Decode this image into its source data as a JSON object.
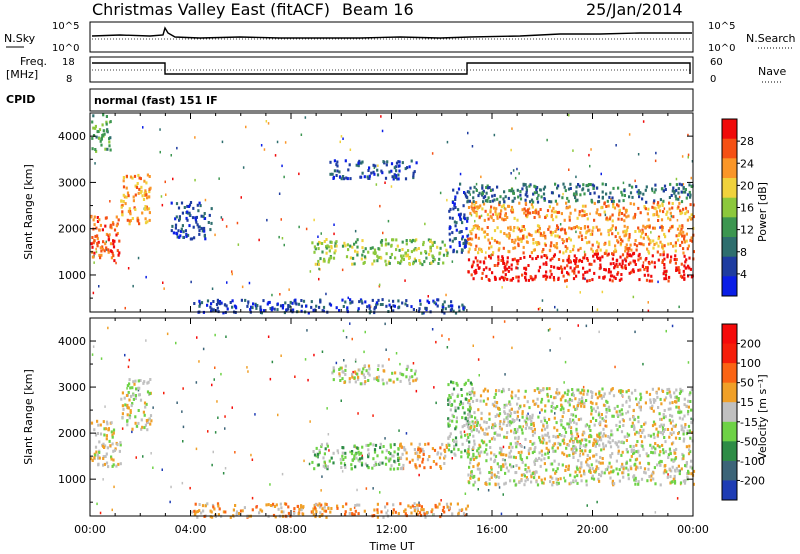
{
  "header": {
    "station": "Christmas Valley East (fitACF)",
    "beam": "Beam 16",
    "date": "25/Jan/2014"
  },
  "top_panels": {
    "nsky_label": "N.Sky",
    "nsky_ticks": [
      "10^5",
      "10^0"
    ],
    "nsearch_label": "N.Search",
    "nsearch_ticks": [
      "10^5",
      "10^0"
    ],
    "freq_label_1": "Freq.",
    "freq_label_2": "[MHz]",
    "freq_ticks": [
      "18",
      "8"
    ],
    "nave_label": "Nave",
    "nave_ticks": [
      "60",
      "0"
    ],
    "cpid_label": "CPID",
    "cpid_value": "normal (fast) 151 IF"
  },
  "chart_data": [
    {
      "type": "heatmap",
      "name": "Power",
      "ylabel": "Slant Range [km]",
      "ylim": [
        200,
        4500
      ],
      "yticks": [
        "1000",
        "2000",
        "3000",
        "4000"
      ],
      "x_hours": [
        0,
        24
      ],
      "colorbar_label": "Power [dB]",
      "colorbar_ticks": [
        "28",
        "24",
        "20",
        "16",
        "12",
        "8",
        "4"
      ],
      "colors": [
        "#0a1ee6",
        "#1e3ca0",
        "#2e6e6e",
        "#3c9650",
        "#8cc83c",
        "#f0d23c",
        "#fa9628",
        "#f55014",
        "#f00a0a"
      ],
      "regions": [
        {
          "t": [
            0.0,
            1.2
          ],
          "r": [
            1300,
            2300
          ],
          "level": 7
        },
        {
          "t": [
            0.0,
            0.8
          ],
          "r": [
            3700,
            4500
          ],
          "level": 3
        },
        {
          "t": [
            1.2,
            2.4
          ],
          "r": [
            2100,
            3200
          ],
          "level": 6
        },
        {
          "t": [
            3.2,
            4.8
          ],
          "r": [
            1800,
            2600
          ],
          "level": 1
        },
        {
          "t": [
            8.8,
            14.2
          ],
          "r": [
            1250,
            1800
          ],
          "level": 4
        },
        {
          "t": [
            9.5,
            13.0
          ],
          "r": [
            3100,
            3500
          ],
          "level": 1
        },
        {
          "t": [
            14.2,
            15.0
          ],
          "r": [
            1500,
            3000
          ],
          "level": 1
        },
        {
          "t": [
            15.0,
            24.0
          ],
          "r": [
            900,
            1500
          ],
          "level": 8
        },
        {
          "t": [
            15.0,
            24.0
          ],
          "r": [
            1500,
            2100
          ],
          "level": 6
        },
        {
          "t": [
            15.0,
            24.0
          ],
          "r": [
            2200,
            2600
          ],
          "level": 6
        },
        {
          "t": [
            15.0,
            24.0
          ],
          "r": [
            2600,
            3000
          ],
          "level": 2
        },
        {
          "t": [
            4.0,
            15.0
          ],
          "r": [
            200,
            500
          ],
          "level": 1
        }
      ]
    },
    {
      "type": "heatmap",
      "name": "Velocity",
      "ylabel": "Slant Range [km]",
      "xlabel": "Time UT",
      "ylim": [
        200,
        4500
      ],
      "yticks": [
        "1000",
        "2000",
        "3000",
        "4000"
      ],
      "xticks": [
        "00:00",
        "04:00",
        "08:00",
        "12:00",
        "16:00",
        "20:00",
        "00:00"
      ],
      "x_hours": [
        0,
        24
      ],
      "colorbar_label": "Velocity [m s⁻¹]",
      "colorbar_ticks": [
        "200",
        "100",
        "50",
        "15",
        "-15",
        "-50",
        "-100",
        "-200"
      ],
      "colors": [
        "#1e3cb4",
        "#3c6478",
        "#2e8c46",
        "#6ed246",
        "#c0c0c0",
        "#f0a028",
        "#fa6414",
        "#f51e0a",
        "#f50a0a"
      ],
      "regions": [
        {
          "t": [
            0.0,
            1.2
          ],
          "r": [
            1300,
            2300
          ],
          "level": 4
        },
        {
          "t": [
            1.2,
            2.4
          ],
          "r": [
            2100,
            3200
          ],
          "level": 4
        },
        {
          "t": [
            8.8,
            12.3
          ],
          "r": [
            1250,
            1800
          ],
          "level": 3
        },
        {
          "t": [
            12.3,
            14.2
          ],
          "r": [
            1250,
            1800
          ],
          "level": 5
        },
        {
          "t": [
            9.5,
            13.0
          ],
          "r": [
            3100,
            3500
          ],
          "level": 4
        },
        {
          "t": [
            14.2,
            15.2
          ],
          "r": [
            1500,
            3200
          ],
          "level": 3
        },
        {
          "t": [
            15.0,
            24.0
          ],
          "r": [
            900,
            3000
          ],
          "level": 4
        },
        {
          "t": [
            4.0,
            15.0
          ],
          "r": [
            200,
            500
          ],
          "level": 5
        }
      ]
    }
  ]
}
